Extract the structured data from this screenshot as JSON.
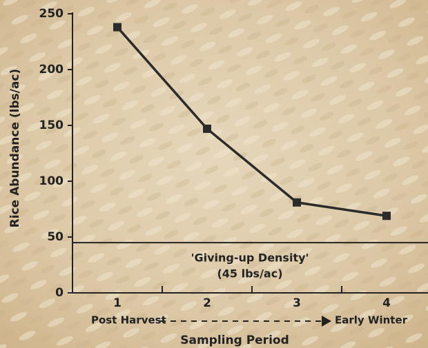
{
  "chart_data": {
    "type": "line",
    "categories": [
      "1",
      "2",
      "3",
      "4"
    ],
    "values": [
      238,
      147,
      81,
      69
    ],
    "color": "#2b2b2b",
    "marker": "square",
    "ylim": [
      0,
      250
    ],
    "yticks": [
      0,
      50,
      100,
      150,
      200,
      250
    ],
    "ylabel": "Rice Abundance (lbs/ac)",
    "xlabel": "Sampling Period",
    "x_start_label": "Post Harvest",
    "x_end_label": "Early Winter",
    "reference_line": {
      "value": 45,
      "label": "'Giving-up Density'",
      "sublabel": "(45 lbs/ac)"
    }
  }
}
